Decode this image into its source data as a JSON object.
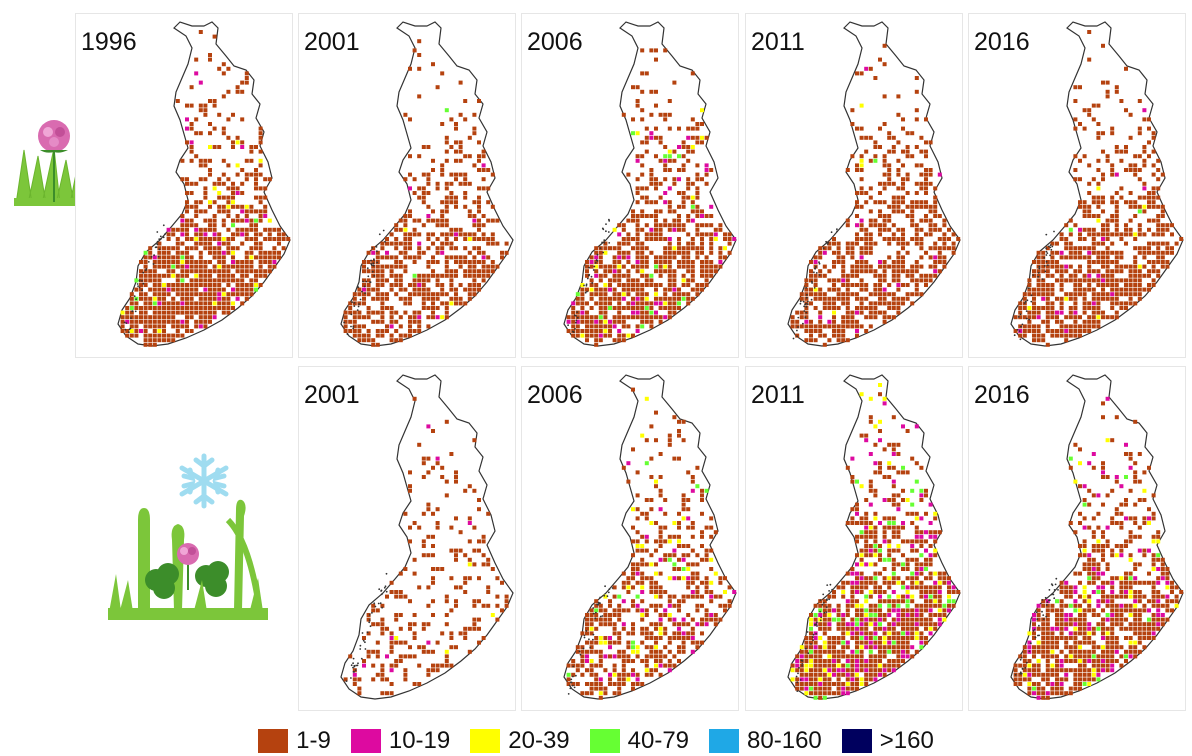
{
  "rows": [
    {
      "crop": "grass-clover",
      "icon": "grass-clover-icon",
      "panels": [
        {
          "year": "1996",
          "density": 0.62,
          "mix": [
            0.9,
            0.05,
            0.035,
            0.015,
            0,
            0
          ]
        },
        {
          "year": "2001",
          "density": 0.45,
          "mix": [
            0.95,
            0.03,
            0.015,
            0.005,
            0,
            0
          ]
        },
        {
          "year": "2006",
          "density": 0.58,
          "mix": [
            0.86,
            0.08,
            0.04,
            0.02,
            0,
            0
          ]
        },
        {
          "year": "2011",
          "density": 0.48,
          "mix": [
            0.95,
            0.035,
            0.01,
            0.005,
            0,
            0
          ]
        },
        {
          "year": "2016",
          "density": 0.55,
          "mix": [
            0.94,
            0.045,
            0.01,
            0.005,
            0,
            0
          ]
        }
      ]
    },
    {
      "crop": "winter-hardy-clover",
      "icon": "snowflake-clover-icon",
      "panels": [
        {
          "year": "2001",
          "density": 0.22,
          "mix": [
            0.97,
            0.02,
            0.01,
            0,
            0,
            0
          ]
        },
        {
          "year": "2006",
          "density": 0.45,
          "mix": [
            0.8,
            0.1,
            0.07,
            0.03,
            0,
            0
          ]
        },
        {
          "year": "2011",
          "density": 0.66,
          "mix": [
            0.66,
            0.16,
            0.1,
            0.08,
            0,
            0
          ]
        },
        {
          "year": "2016",
          "density": 0.6,
          "mix": [
            0.76,
            0.15,
            0.06,
            0.03,
            0,
            0
          ]
        }
      ]
    }
  ],
  "legend": [
    {
      "label": "1-9",
      "color": "#b5420f"
    },
    {
      "label": "10-19",
      "color": "#dd0aa0"
    },
    {
      "label": "20-39",
      "color": "#ffff00"
    },
    {
      "label": "40-79",
      "color": "#66ff33"
    },
    {
      "label": "80-160",
      "color": "#1fa8e6"
    },
    {
      "label": ">160",
      "color": "#00005e"
    }
  ],
  "colors": {
    "outline": "#333333",
    "grass": "#7cc63a",
    "clover_flower": "#d96bb0",
    "snowflake": "#9fdcf0"
  }
}
